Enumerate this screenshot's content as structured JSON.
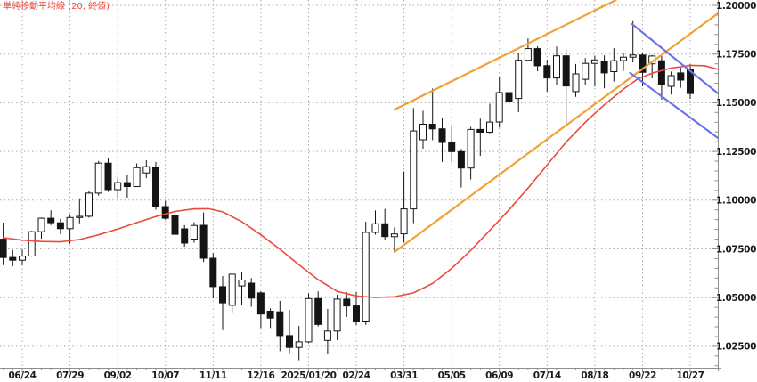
{
  "legend": {
    "label": "単純移動平均線 (20, 終値)"
  },
  "chart_data": {
    "type": "candlestick",
    "title": "単純移動平均線 (20, 終値)",
    "timeframe": "weekly",
    "grid": true,
    "legend_position": "top-left",
    "y_axis": {
      "side": "right",
      "tick_labels": [
        "1.20000",
        "1.17500",
        "1.15000",
        "1.12500",
        "1.10000",
        "1.07500",
        "1.05000",
        "1.02500"
      ],
      "tick_values": [
        1.2,
        1.175,
        1.15,
        1.125,
        1.1,
        1.075,
        1.05,
        1.025
      ],
      "minor_step": 0.005,
      "range": [
        1.014,
        1.20275
      ]
    },
    "x_axis": {
      "labels": [
        "06/24",
        "07/29",
        "09/02",
        "10/07",
        "11/11",
        "12/16",
        "2025/01/20",
        "02/24",
        "03/31",
        "05/05",
        "06/09",
        "07/14",
        "08/18",
        "09/22",
        "10/27"
      ],
      "label_indices": [
        2,
        7,
        12,
        17,
        22,
        27,
        32,
        37,
        42,
        47,
        52,
        57,
        62,
        67,
        72
      ]
    },
    "candles": {
      "dates": [
        "06/10",
        "06/17",
        "06/24",
        "07/01",
        "07/08",
        "07/15",
        "07/22",
        "07/29",
        "08/05",
        "08/12",
        "08/19",
        "08/26",
        "09/02",
        "09/09",
        "09/16",
        "09/23",
        "09/30",
        "10/07",
        "10/14",
        "10/21",
        "10/28",
        "11/04",
        "11/11",
        "11/18",
        "11/25",
        "12/02",
        "12/09",
        "12/16",
        "12/23",
        "12/30",
        "01/06",
        "01/13",
        "01/20",
        "01/27",
        "02/03",
        "02/10",
        "02/17",
        "02/24",
        "03/03",
        "03/10",
        "03/17",
        "03/24",
        "03/31",
        "04/07",
        "04/14",
        "04/21",
        "04/28",
        "05/05",
        "05/12",
        "05/19",
        "05/26",
        "06/02",
        "06/09",
        "06/16",
        "06/23",
        "06/30",
        "07/07",
        "07/14",
        "07/21",
        "07/28",
        "08/04",
        "08/11",
        "08/18",
        "08/25",
        "09/01",
        "09/08",
        "09/15",
        "09/22",
        "09/29",
        "10/06",
        "10/13",
        "10/20",
        "10/27"
      ],
      "ohlc": [
        [
          1.08,
          1.0885,
          1.0667,
          1.0706
        ],
        [
          1.0706,
          1.0744,
          1.0661,
          1.0692
        ],
        [
          1.0692,
          1.0746,
          1.0666,
          1.0713
        ],
        [
          1.0713,
          1.0843,
          1.071,
          1.0838
        ],
        [
          1.0838,
          1.0911,
          1.0802,
          1.0907
        ],
        [
          1.0907,
          1.0948,
          1.0872,
          1.0884
        ],
        [
          1.0884,
          1.0904,
          1.0825,
          1.0854
        ],
        [
          1.0854,
          1.0927,
          1.0777,
          1.0911
        ],
        [
          1.0911,
          1.1009,
          1.0881,
          1.0917
        ],
        [
          1.0917,
          1.1047,
          1.091,
          1.1036
        ],
        [
          1.1036,
          1.1201,
          1.1024,
          1.119
        ],
        [
          1.119,
          1.1214,
          1.1043,
          1.1054
        ],
        [
          1.1054,
          1.1113,
          1.1013,
          1.109
        ],
        [
          1.109,
          1.1127,
          1.1013,
          1.107
        ],
        [
          1.107,
          1.1189,
          1.1069,
          1.1167
        ],
        [
          1.114,
          1.1205,
          1.1113,
          1.1172
        ],
        [
          1.1168,
          1.1196,
          1.0951,
          1.0967
        ],
        [
          1.0967,
          1.0996,
          1.09,
          1.0907
        ],
        [
          1.0921,
          1.0936,
          1.0803,
          1.0825
        ],
        [
          1.0853,
          1.0872,
          1.0761,
          1.078
        ],
        [
          1.08,
          1.0887,
          1.0782,
          1.087
        ],
        [
          1.0871,
          1.0937,
          1.0683,
          1.0702
        ],
        [
          1.0702,
          1.0728,
          1.0496,
          1.0556
        ],
        [
          1.0556,
          1.061,
          1.0333,
          1.0473
        ],
        [
          1.046,
          1.0597,
          1.0424,
          1.062
        ],
        [
          1.056,
          1.0629,
          1.046,
          1.059
        ],
        [
          1.0574,
          1.06,
          1.0453,
          1.0497
        ],
        [
          1.0524,
          1.0533,
          1.0343,
          1.0415
        ],
        [
          1.043,
          1.0445,
          1.0344,
          1.0395
        ],
        [
          1.0427,
          1.0483,
          1.0225,
          1.0305
        ],
        [
          1.0305,
          1.0437,
          1.0215,
          1.0244
        ],
        [
          1.0244,
          1.0354,
          1.0178,
          1.0273
        ],
        [
          1.0273,
          1.0521,
          1.0266,
          1.0495
        ],
        [
          1.0495,
          1.0532,
          1.0352,
          1.0362
        ],
        [
          1.028,
          1.0442,
          1.021,
          1.0328
        ],
        [
          1.0328,
          1.0514,
          1.0282,
          1.0492
        ],
        [
          1.0492,
          1.0528,
          1.0401,
          1.0457
        ],
        [
          1.0457,
          1.0529,
          1.0359,
          1.0375
        ],
        [
          1.0375,
          1.0889,
          1.036,
          1.0835
        ],
        [
          1.0835,
          1.0947,
          1.0823,
          1.0879
        ],
        [
          1.0879,
          1.0955,
          1.0796,
          1.0813
        ],
        [
          1.0813,
          1.086,
          1.0733,
          1.0827
        ],
        [
          1.0827,
          1.1147,
          1.0782,
          1.0955
        ],
        [
          1.0955,
          1.1473,
          1.0882,
          1.1355
        ],
        [
          1.131,
          1.1459,
          1.1264,
          1.139
        ],
        [
          1.139,
          1.1573,
          1.1308,
          1.1366
        ],
        [
          1.1366,
          1.1424,
          1.1196,
          1.1296
        ],
        [
          1.1296,
          1.1381,
          1.1197,
          1.1249
        ],
        [
          1.1249,
          1.1263,
          1.1065,
          1.1165
        ],
        [
          1.1165,
          1.1376,
          1.1106,
          1.1363
        ],
        [
          1.1363,
          1.1418,
          1.1227,
          1.1349
        ],
        [
          1.1349,
          1.1495,
          1.1343,
          1.1401
        ],
        [
          1.1401,
          1.1631,
          1.1372,
          1.1552
        ],
        [
          1.1552,
          1.158,
          1.143,
          1.1504
        ],
        [
          1.1522,
          1.1754,
          1.1451,
          1.1718
        ],
        [
          1.1718,
          1.183,
          1.1717,
          1.1778
        ],
        [
          1.1778,
          1.179,
          1.1662,
          1.169
        ],
        [
          1.169,
          1.1721,
          1.1556,
          1.1627
        ],
        [
          1.1627,
          1.1789,
          1.1592,
          1.1741
        ],
        [
          1.1741,
          1.1773,
          1.1392,
          1.1586
        ],
        [
          1.1557,
          1.1699,
          1.153,
          1.1648
        ],
        [
          1.162,
          1.173,
          1.1591,
          1.1702
        ],
        [
          1.1702,
          1.1742,
          1.1583,
          1.172
        ],
        [
          1.1712,
          1.1743,
          1.1574,
          1.1653
        ],
        [
          1.166,
          1.178,
          1.1609,
          1.1716
        ],
        [
          1.1716,
          1.1757,
          1.1663,
          1.1734
        ],
        [
          1.1734,
          1.1919,
          1.1707,
          1.1745
        ],
        [
          1.1745,
          1.1755,
          1.1584,
          1.1656
        ],
        [
          1.17,
          1.1745,
          1.1625,
          1.174
        ],
        [
          1.1716,
          1.174,
          1.1516,
          1.1593
        ],
        [
          1.1584,
          1.166,
          1.1542,
          1.1639
        ],
        [
          1.1653,
          1.168,
          1.1577,
          1.1616
        ],
        [
          1.167,
          1.17,
          1.152,
          1.1547
        ]
      ]
    },
    "sma20": {
      "period": 20,
      "source": "close",
      "points": [
        [
          0,
          1.0807
        ],
        [
          2,
          1.0795
        ],
        [
          4,
          1.0788
        ],
        [
          6,
          1.0786
        ],
        [
          8,
          1.0798
        ],
        [
          10,
          1.0822
        ],
        [
          12,
          1.0852
        ],
        [
          14,
          1.0885
        ],
        [
          16,
          1.0916
        ],
        [
          18,
          1.0942
        ],
        [
          20,
          1.0955
        ],
        [
          21.5,
          1.0956
        ],
        [
          23,
          1.094
        ],
        [
          25,
          1.089
        ],
        [
          27,
          1.0822
        ],
        [
          29,
          1.0748
        ],
        [
          31,
          1.0668
        ],
        [
          33,
          1.0592
        ],
        [
          35,
          1.0532
        ],
        [
          37,
          1.0508
        ],
        [
          39,
          1.0501
        ],
        [
          41,
          1.0504
        ],
        [
          43,
          1.0524
        ],
        [
          45,
          1.0572
        ],
        [
          47,
          1.065
        ],
        [
          49,
          1.0742
        ],
        [
          51,
          1.0845
        ],
        [
          53,
          1.095
        ],
        [
          55,
          1.1062
        ],
        [
          57,
          1.118
        ],
        [
          59,
          1.1298
        ],
        [
          61,
          1.14
        ],
        [
          63,
          1.149
        ],
        [
          65,
          1.157
        ],
        [
          66.5,
          1.1622
        ],
        [
          68,
          1.1652
        ],
        [
          70,
          1.1678
        ],
        [
          72,
          1.1692
        ],
        [
          73.5,
          1.169
        ],
        [
          74.9,
          1.1672
        ]
      ]
    },
    "trendlines": [
      {
        "name": "ascending-channel-upper",
        "color_key": "orange",
        "from": [
          41.0,
          1.1465
        ],
        "to": [
          64.2,
          1.2027
        ]
      },
      {
        "name": "ascending-channel-lower",
        "color_key": "orange",
        "from": [
          41.0,
          1.0734
        ],
        "to": [
          74.9,
          1.1959
        ]
      },
      {
        "name": "descending-channel-upper",
        "color_key": "blue",
        "from": [
          65.9,
          1.1904
        ],
        "to": [
          74.9,
          1.1548
        ]
      },
      {
        "name": "descending-channel-lower",
        "color_key": "blue",
        "from": [
          65.7,
          1.1653
        ],
        "to": [
          75.0,
          1.1315
        ]
      }
    ],
    "colors": {
      "background": "#ffffff",
      "up_candle": "#ffffff",
      "down_candle": "#151515",
      "candle_outline": "#151515",
      "sma": "#ea4b41",
      "orange": "#f2a136",
      "blue": "#6b74ee",
      "grid": "#a9a9a9",
      "axis": "#8f8f8f",
      "label": "#1b1b1b"
    }
  }
}
